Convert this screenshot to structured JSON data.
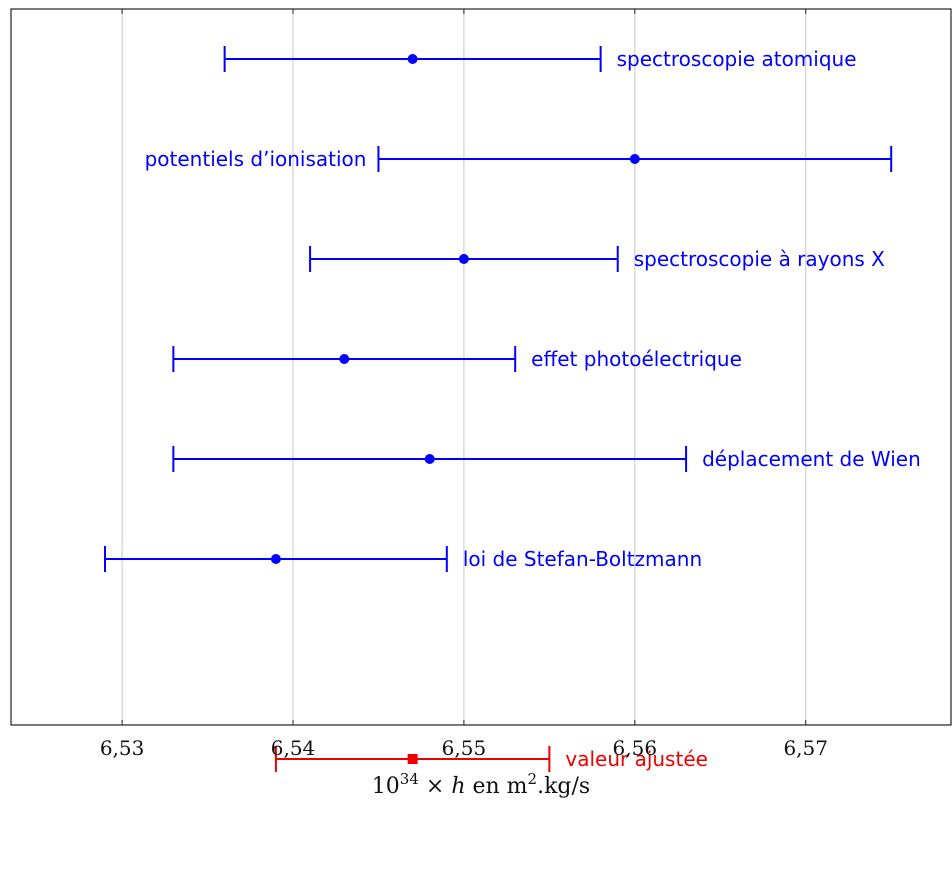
{
  "chart_data": {
    "type": "errorbar",
    "title": "",
    "xlabel": "10^34 × h en m².kg/s",
    "xlabel_parts": {
      "base": "10",
      "exp": "34",
      "mid": " × ",
      "var": "h",
      "unit_pre": " en m",
      "unit_exp": "2",
      "unit_post": ".kg/s"
    },
    "ylabel": "",
    "xlim": [
      6.5235,
      6.5785
    ],
    "xticks": [
      6.53,
      6.54,
      6.55,
      6.56,
      6.57
    ],
    "xtick_labels": [
      "6,53",
      "6,54",
      "6,55",
      "6,56",
      "6,57"
    ],
    "grid": "vertical",
    "series": [
      {
        "name": "measurements",
        "color": "#0000ff",
        "marker": "circle",
        "points": [
          {
            "label": "spectroscopie atomique",
            "value": 6.547,
            "low": 6.536,
            "high": 6.558,
            "label_side": "right"
          },
          {
            "label": "potentiels d’ionisation",
            "value": 6.56,
            "low": 6.545,
            "high": 6.575,
            "label_side": "left"
          },
          {
            "label": "spectroscopie à rayons X",
            "value": 6.55,
            "low": 6.541,
            "high": 6.559,
            "label_side": "right"
          },
          {
            "label": "effet photoélectrique",
            "value": 6.543,
            "low": 6.533,
            "high": 6.553,
            "label_side": "right"
          },
          {
            "label": "déplacement de Wien",
            "value": 6.548,
            "low": 6.533,
            "high": 6.563,
            "label_side": "right"
          },
          {
            "label": "loi de Stefan-Boltzmann",
            "value": 6.539,
            "low": 6.529,
            "high": 6.549,
            "label_side": "right"
          }
        ]
      },
      {
        "name": "fit",
        "color": "#ee0000",
        "marker": "square",
        "points": [
          {
            "label": "valeur ajustée",
            "value": 6.547,
            "low": 6.539,
            "high": 6.555,
            "label_side": "right"
          }
        ]
      }
    ]
  }
}
